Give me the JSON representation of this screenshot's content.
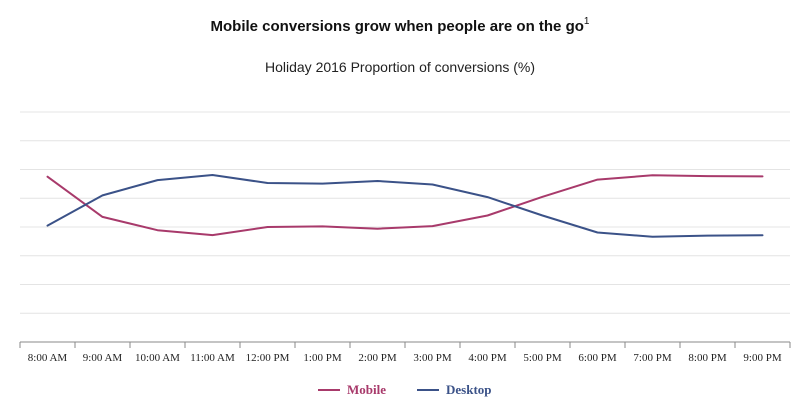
{
  "title": "Mobile conversions grow when people are on the go",
  "title_footnote": "1",
  "subtitle": "Holiday 2016 Proportion of conversions (%)",
  "colors": {
    "mobile": "#a83a6b",
    "desktop": "#3b5288",
    "grid": "#e4e4e4",
    "axis": "#888888"
  },
  "chart_data": {
    "type": "line",
    "title": "Mobile conversions grow when people are on the go",
    "subtitle": "Holiday 2016 Proportion of conversions (%)",
    "categories": [
      "8:00 AM",
      "9:00 AM",
      "10:00 AM",
      "11:00 AM",
      "12:00 PM",
      "1:00 PM",
      "2:00 PM",
      "3:00 PM",
      "4:00 PM",
      "5:00 PM",
      "6:00 PM",
      "7:00 PM",
      "8:00 PM",
      "9:00 PM"
    ],
    "series": [
      {
        "name": "Mobile",
        "values": [
          57.5,
          43.5,
          38.9,
          37.2,
          40.0,
          40.2,
          39.4,
          40.3,
          44.0,
          50.5,
          56.5,
          58.0,
          57.7,
          57.6
        ]
      },
      {
        "name": "Desktop",
        "values": [
          40.5,
          51.0,
          56.3,
          58.1,
          55.3,
          55.1,
          56.0,
          54.8,
          50.4,
          44.0,
          38.1,
          36.6,
          37.0,
          37.1
        ]
      }
    ],
    "ylim": [
      0,
      80
    ],
    "ygrid_step": 10,
    "grid": true,
    "legend_position": "bottom-center",
    "xlabel": "",
    "ylabel": ""
  }
}
